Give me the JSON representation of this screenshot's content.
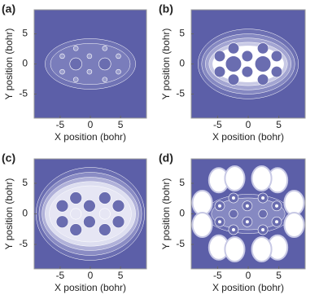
{
  "chart_data": [
    {
      "type": "contour",
      "title": "(a)",
      "xlabel": "X position (bohr)",
      "ylabel": "Y position (bohr)",
      "xlim": [
        -9.3,
        9.3
      ],
      "ylim": [
        -9,
        9
      ],
      "xticks": [
        -5,
        0,
        5
      ],
      "yticks": [
        -5,
        0,
        5
      ]
    },
    {
      "type": "contour",
      "title": "(b)",
      "xlabel": "X position (bohr)",
      "ylabel": "Y position (bohr)",
      "xlim": [
        -9.3,
        9.3
      ],
      "ylim": [
        -9,
        9
      ],
      "xticks": [
        -5,
        0,
        5
      ],
      "yticks": [
        -5,
        0,
        5
      ]
    },
    {
      "type": "contour",
      "title": "(c)",
      "xlabel": "X position (bohr)",
      "ylabel": "Y position (bohr)",
      "xlim": [
        -9.3,
        9.3
      ],
      "ylim": [
        -9,
        9
      ],
      "xticks": [
        -5,
        0,
        5
      ],
      "yticks": [
        -5,
        0,
        5
      ]
    },
    {
      "type": "contour",
      "title": "(d)",
      "xlabel": "X position (bohr)",
      "ylabel": "Y position (bohr)",
      "xlim": [
        -9.3,
        9.3
      ],
      "ylim": [
        -9,
        9
      ],
      "xticks": [
        -5,
        0,
        5
      ],
      "yticks": [
        -5,
        0,
        5
      ]
    }
  ]
}
